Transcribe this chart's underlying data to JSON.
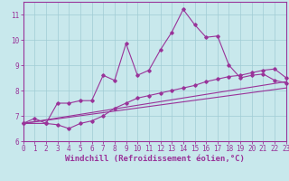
{
  "background_color": "#c8e8ec",
  "grid_color": "#a0ccd4",
  "line_color": "#993399",
  "xlim": [
    0,
    23
  ],
  "ylim": [
    6.0,
    11.5
  ],
  "xticks": [
    0,
    1,
    2,
    3,
    4,
    5,
    6,
    7,
    8,
    9,
    10,
    11,
    12,
    13,
    14,
    15,
    16,
    17,
    18,
    19,
    20,
    21,
    22,
    23
  ],
  "yticks": [
    6,
    7,
    8,
    9,
    10,
    11
  ],
  "xlabel": "Windchill (Refroidissement éolien,°C)",
  "xlabel_fontsize": 6.5,
  "tick_fontsize": 5.5,
  "series1_x": [
    0,
    1,
    2,
    3,
    4,
    5,
    6,
    7,
    8,
    9,
    10,
    11,
    12,
    13,
    14,
    15,
    16,
    17,
    18,
    19,
    20,
    21,
    22,
    23
  ],
  "series1_y": [
    6.7,
    6.9,
    6.7,
    7.5,
    7.5,
    7.6,
    7.6,
    8.6,
    8.4,
    9.85,
    8.6,
    8.8,
    9.6,
    10.3,
    11.2,
    10.6,
    10.1,
    10.15,
    9.0,
    8.5,
    8.6,
    8.65,
    8.4,
    8.3
  ],
  "series2_x": [
    0,
    2,
    3,
    4,
    5,
    6,
    7,
    8,
    9,
    10,
    11,
    12,
    13,
    14,
    15,
    16,
    17,
    18,
    19,
    20,
    21,
    22,
    23
  ],
  "series2_y": [
    6.7,
    6.7,
    6.65,
    6.5,
    6.7,
    6.8,
    7.0,
    7.3,
    7.5,
    7.7,
    7.8,
    7.9,
    8.0,
    8.1,
    8.2,
    8.35,
    8.45,
    8.55,
    8.6,
    8.7,
    8.8,
    8.85,
    8.5
  ],
  "series3_x": [
    0,
    23
  ],
  "series3_y": [
    6.7,
    8.1
  ],
  "series4_x": [
    0,
    23
  ],
  "series4_y": [
    6.7,
    8.35
  ]
}
